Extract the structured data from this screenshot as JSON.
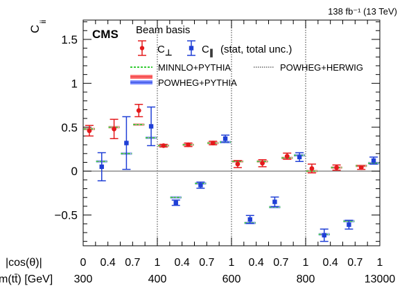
{
  "chart_data": {
    "type": "scatter",
    "title": "",
    "lumi_label": "138 fb⁻¹ (13 TeV)",
    "experiment": "CMS",
    "legend_title": "Beam basis",
    "legend_unc_label": "(stat, total unc.)",
    "ylabel": "C_ii",
    "ylabel_main": "C",
    "ylabel_sub": "ii",
    "ylim": [
      -0.85,
      1.72
    ],
    "yticks": [
      -0.5,
      0,
      0.5,
      1,
      1.5
    ],
    "ytick_labels": [
      "−0.5",
      "0",
      "0.5",
      "1",
      "1.5"
    ],
    "x_row1_label": "|cos(θ)|",
    "x_row2_label": "m(tt̄) [GeV]",
    "x_row1_ticks": [
      "0",
      "0.4",
      "0.7",
      "1",
      "0.4",
      "0.7",
      "1",
      "0.4",
      "0.7",
      "1",
      "0.4",
      "0.7",
      "1"
    ],
    "x_row2_ticks": [
      "300",
      "400",
      "600",
      "800",
      "13000"
    ],
    "mass_bins": [
      "300-400",
      "400-600",
      "600-800",
      "800-13000"
    ],
    "bin_index_range": [
      0,
      20
    ],
    "grid": false,
    "legend_position": "top-center",
    "colors": {
      "perp": "#e41a1c",
      "par": "#1f3fd6",
      "minnlo": "#33cc33",
      "powheg_herwig": "#666666",
      "powheg_pythia_red": "#ff7b7b",
      "powheg_pythia_blue": "#7b8bff"
    },
    "series": [
      {
        "name": "C⊥",
        "marker": "circle",
        "x": [
          0.5,
          2.5,
          4.5,
          6.5,
          8.5,
          10.5,
          12.5,
          14.5,
          16.5,
          18.5
        ],
        "y": [
          0.46,
          0.48,
          0.69,
          0.29,
          0.3,
          0.32,
          0.08,
          0.09,
          0.17,
          0.03
        ],
        "err": [
          0.06,
          0.11,
          0.07,
          0.015,
          0.02,
          0.02,
          0.04,
          0.04,
          0.035,
          0.05
        ]
      },
      {
        "name": "C∥",
        "marker": "square",
        "x": [
          1.5,
          3.5,
          5.5,
          7.5,
          9.5,
          11.5,
          13.5,
          15.5,
          17.5,
          19.5
        ],
        "y": [
          0.05,
          0.32,
          0.51,
          -0.36,
          -0.16,
          0.37,
          -0.55,
          -0.35,
          0.16,
          -0.73
        ],
        "err": [
          0.16,
          0.3,
          0.22,
          0.03,
          0.035,
          0.04,
          0.045,
          0.055,
          0.05,
          0.07
        ]
      },
      {
        "name": "MINNLO+PYTHIA",
        "style": "dashed",
        "x": [
          0.5,
          1.5,
          2.5,
          3.5,
          4.5,
          5.5,
          6.5,
          7.5,
          8.5,
          9.5,
          10.5,
          11.5,
          12.5,
          13.5,
          14.5,
          15.5,
          16.5,
          17.5,
          18.5,
          19.5
        ],
        "y": [
          0.48,
          0.11,
          0.5,
          0.2,
          0.53,
          0.38,
          0.29,
          -0.3,
          0.3,
          -0.14,
          0.32,
          0.33,
          0.11,
          -0.59,
          0.11,
          -0.41,
          0.15,
          0.18,
          0.0,
          -0.72
        ]
      },
      {
        "name": "POWHEG+HERWIG",
        "style": "dotted",
        "x": [
          0.5,
          1.5,
          2.5,
          3.5,
          4.5,
          5.5,
          6.5,
          7.5,
          8.5,
          9.5,
          10.5,
          11.5,
          12.5,
          13.5,
          14.5,
          15.5,
          16.5,
          17.5,
          18.5,
          19.5
        ],
        "y": [
          0.48,
          0.11,
          0.5,
          0.2,
          0.53,
          0.38,
          0.29,
          -0.3,
          0.3,
          -0.14,
          0.32,
          0.33,
          0.11,
          -0.59,
          0.11,
          -0.41,
          0.15,
          0.18,
          0.0,
          -0.72
        ]
      },
      {
        "name": "POWHEG+PYTHIA",
        "style": "band",
        "x": [
          0.5,
          1.5,
          2.5,
          3.5,
          4.5,
          5.5,
          6.5,
          7.5,
          8.5,
          9.5,
          10.5,
          11.5,
          12.5,
          13.5,
          14.5,
          15.5,
          16.5,
          17.5,
          18.5,
          19.5
        ],
        "y": [
          0.48,
          0.11,
          0.5,
          0.2,
          0.53,
          0.38,
          0.29,
          -0.3,
          0.3,
          -0.14,
          0.32,
          0.33,
          0.11,
          -0.59,
          0.11,
          -0.41,
          0.15,
          0.18,
          0.0,
          -0.72
        ]
      }
    ],
    "extra_points": {
      "C⊥": {
        "x": [
          20.5
        ],
        "y": [
          0.04
        ],
        "err": [
          0.03
        ]
      },
      "C∥": {
        "x": [
          21.5
        ],
        "y": [
          -0.61
        ],
        "err": [
          0.05
        ]
      }
    }
  },
  "legend_labels": {
    "perp_main": "C",
    "perp_sub": "⊥",
    "par_main": "C",
    "par_sub": "∥"
  },
  "extra_model_values": {
    "x": [
      20.5,
      21.5,
      22.5,
      23.5
    ],
    "y": [
      0.04,
      -0.57,
      0.06,
      0.09
    ]
  },
  "last_points": {
    "C⊥": {
      "x": 22.5,
      "y": 0.04,
      "err": 0.02
    },
    "C∥": {
      "x": 23.5,
      "y": 0.12,
      "err": 0.04
    }
  },
  "nbins": 24
}
